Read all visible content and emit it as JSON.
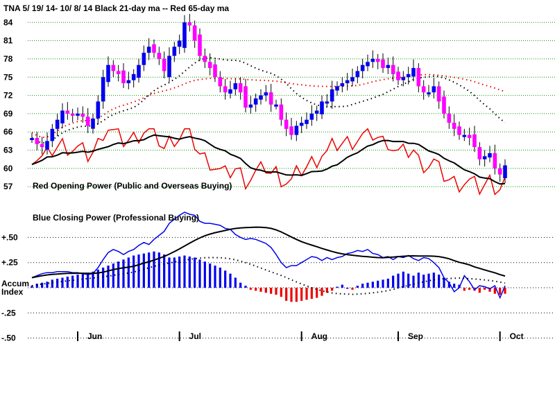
{
  "chart_data": {
    "type": "candlestick",
    "title": "TNA   5/ 19/ 14- 10/ 8/ 14    Black 21-day ma --  Red 65-day ma",
    "price_ticks": [
      "84",
      "81",
      "78",
      "75",
      "72",
      "69",
      "66",
      "63",
      "60",
      "57"
    ],
    "price_tick_values": [
      84,
      81,
      78,
      75,
      72,
      69,
      66,
      63,
      60,
      57
    ],
    "price_ylim": [
      55.2,
      85.4
    ],
    "indicator_ticks": [
      "+.50",
      "+.25",
      "0",
      "-.25",
      "-.50"
    ],
    "indicator_tick_values": [
      0.5,
      0.25,
      0,
      -0.25,
      -0.5
    ],
    "indicator_ylim": [
      -0.62,
      0.62
    ],
    "months": [
      "Jun",
      "Jul",
      "Aug",
      "Sep",
      "Oct"
    ],
    "month_positions": [
      9,
      29,
      53,
      72,
      92
    ],
    "annotations": {
      "red_power": "Red Opening Power (Public and Overseas Buying)",
      "blue_power": "Blue Closing Power (Professional Buying)",
      "accum_line1": "Accum",
      "accum_line2": "Index"
    },
    "colors": {
      "up": "#0000ee",
      "down": "#ff00ff",
      "red": "#ee0000",
      "blue": "#0000ee",
      "black": "#000000",
      "grid": "#009900"
    },
    "closes": [
      65,
      64,
      63.5,
      64.5,
      66.5,
      68,
      69.5,
      69,
      68.8,
      69,
      68.5,
      67,
      68.2,
      71,
      75,
      77,
      76,
      75.5,
      74,
      74.5,
      75.5,
      77,
      79,
      80,
      79,
      78,
      76,
      78.5,
      80,
      81,
      84,
      83.5,
      81,
      78.5,
      77.5,
      76.5,
      75,
      73.5,
      72.5,
      73,
      74,
      72.5,
      70,
      70.5,
      71.5,
      72,
      72.5,
      70.5,
      70.5,
      68,
      66.5,
      65.5,
      67,
      67.5,
      68,
      69,
      69.5,
      71,
      71,
      73,
      73.5,
      74,
      74.5,
      75,
      76,
      77,
      77.5,
      78,
      77.5,
      76.5,
      77,
      75.5,
      74.5,
      75,
      75.5,
      76.5,
      73.5,
      72.5,
      72.5,
      73.5,
      71,
      69,
      67.5,
      66.5,
      65.5,
      65.5,
      65,
      63.5,
      61.5,
      62,
      62.5,
      60,
      59,
      60.5
    ],
    "close_power": [
      0.1,
      0.12,
      0.14,
      0.15,
      0.15,
      0.16,
      0.16,
      0.16,
      0.15,
      0.15,
      0.14,
      0.13,
      0.14,
      0.2,
      0.28,
      0.35,
      0.38,
      0.36,
      0.33,
      0.36,
      0.38,
      0.42,
      0.45,
      0.43,
      0.48,
      0.52,
      0.56,
      0.64,
      0.68,
      0.72,
      0.75,
      0.73,
      0.72,
      0.66,
      0.64,
      0.64,
      0.63,
      0.62,
      0.59,
      0.58,
      0.53,
      0.5,
      0.48,
      0.49,
      0.48,
      0.46,
      0.44,
      0.4,
      0.33,
      0.25,
      0.2,
      0.22,
      0.22,
      0.25,
      0.28,
      0.31,
      0.3,
      0.27,
      0.3,
      0.28,
      0.3,
      0.31,
      0.34,
      0.35,
      0.37,
      0.36,
      0.38,
      0.34,
      0.33,
      0.3,
      0.31,
      0.28,
      0.31,
      0.3,
      0.32,
      0.29,
      0.27,
      0.3,
      0.29,
      0.25,
      0.2,
      0.1,
      0.05,
      -0.04,
      0.0,
      0.12,
      0.06,
      -0.02,
      0.02,
      0.01,
      -0.01,
      0.02,
      -0.1,
      0.02
    ],
    "accum_index": [
      0.02,
      0.04,
      0.05,
      0.06,
      0.08,
      0.09,
      0.1,
      0.11,
      0.12,
      0.13,
      0.14,
      0.15,
      0.16,
      0.18,
      0.2,
      0.22,
      0.24,
      0.26,
      0.28,
      0.3,
      0.32,
      0.33,
      0.34,
      0.35,
      0.36,
      0.35,
      0.33,
      0.3,
      0.3,
      0.31,
      0.32,
      0.31,
      0.3,
      0.28,
      0.26,
      0.24,
      0.22,
      0.2,
      0.17,
      0.14,
      0.1,
      0.05,
      0.02,
      -0.02,
      -0.03,
      -0.04,
      -0.05,
      -0.06,
      -0.07,
      -0.09,
      -0.13,
      -0.14,
      -0.14,
      -0.13,
      -0.12,
      -0.11,
      -0.1,
      -0.08,
      -0.05,
      -0.03,
      0.01,
      0.03,
      0.0,
      -0.02,
      0.02,
      0.04,
      0.05,
      0.06,
      0.07,
      0.08,
      0.09,
      0.12,
      0.14,
      0.16,
      0.14,
      0.12,
      0.15,
      0.13,
      0.14,
      0.15,
      0.13,
      0.1,
      0.06,
      0.04,
      0.03,
      -0.03,
      -0.02,
      -0.03,
      -0.05,
      -0.02,
      -0.04,
      -0.06,
      -0.07,
      -0.06
    ]
  }
}
